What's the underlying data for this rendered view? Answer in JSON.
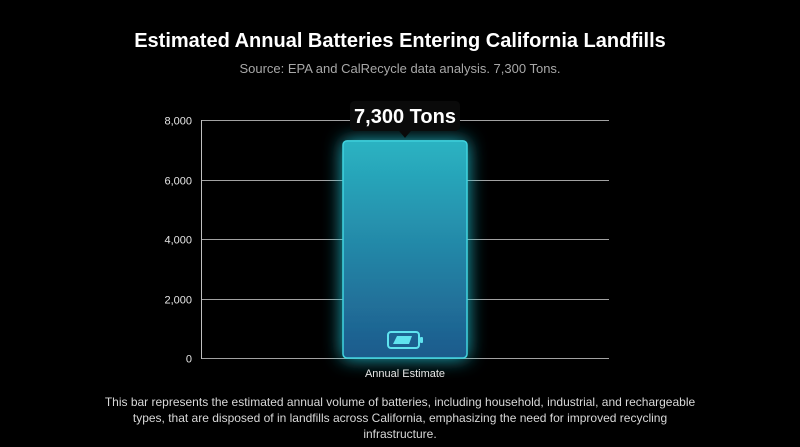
{
  "title": "Estimated Annual Batteries Entering California Landfills",
  "subtitle": "Source: EPA and CalRecycle data analysis. 7,300 Tons.",
  "caption": "This bar represents the estimated annual volume of batteries, including household, industrial, and rechargeable types, that are disposed of in landfills across California, emphasizing the need for improved recycling infrastructure.",
  "colors": {
    "bar_top": "#2ab3c2",
    "bar_bottom": "#1d5a8c",
    "bar_border": "#3fd4e0",
    "glow": "#22c4d6",
    "grid": "#bfbfbf",
    "callout_bg": "#0a0a0a"
  },
  "chart_data": {
    "type": "bar",
    "categories": [
      "Annual Estimate"
    ],
    "values": [
      7300
    ],
    "ylim": [
      0,
      8000
    ],
    "yticks": [
      0,
      2000,
      4000,
      6000,
      8000
    ],
    "ytick_labels": [
      "0",
      "2,000",
      "4,000",
      "6,000",
      "8,000"
    ],
    "grid": true,
    "data_label": "7,300 Tons",
    "bar_icon": "battery-icon"
  }
}
